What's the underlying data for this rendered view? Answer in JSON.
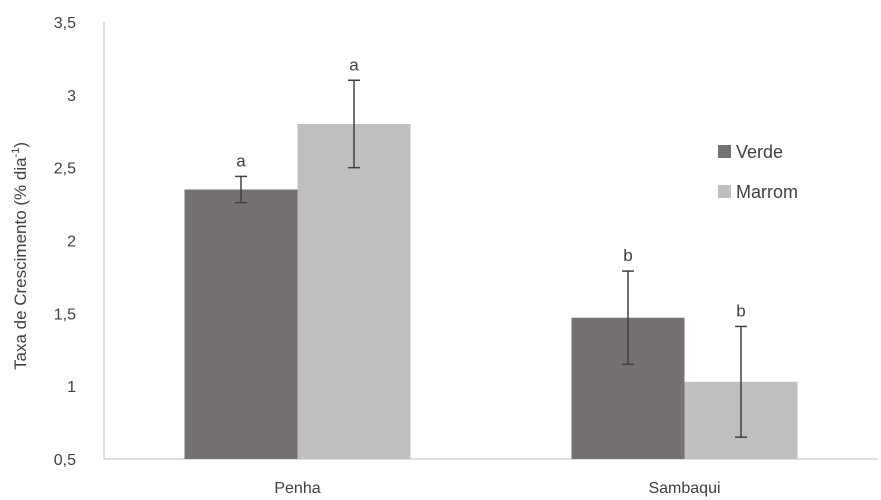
{
  "chart_data": {
    "type": "bar",
    "title": "",
    "ylabel_main": "Taxa de Crescimento (% dia",
    "ylabel_sup": "-1",
    "ylabel_end": ")",
    "xlabel": "",
    "ylim": [
      0.5,
      3.5
    ],
    "yticks": [
      0.5,
      1,
      1.5,
      2,
      2.5,
      3,
      3.5
    ],
    "ytick_labels": [
      "0,5",
      "1",
      "1,5",
      "2",
      "2,5",
      "3",
      "3,5"
    ],
    "categories": [
      "Penha",
      "Sambaqui"
    ],
    "series": [
      {
        "name": "Verde",
        "color": "#767171",
        "values": [
          2.35,
          1.47
        ],
        "errors": [
          0.09,
          0.32
        ],
        "labels": [
          "a",
          "b"
        ]
      },
      {
        "name": "Marrom",
        "color": "#bfbfbf",
        "values": [
          2.8,
          1.03
        ],
        "errors": [
          0.3,
          0.38
        ],
        "labels": [
          "a",
          "b"
        ]
      }
    ],
    "legend_position": "right",
    "grid": false
  }
}
